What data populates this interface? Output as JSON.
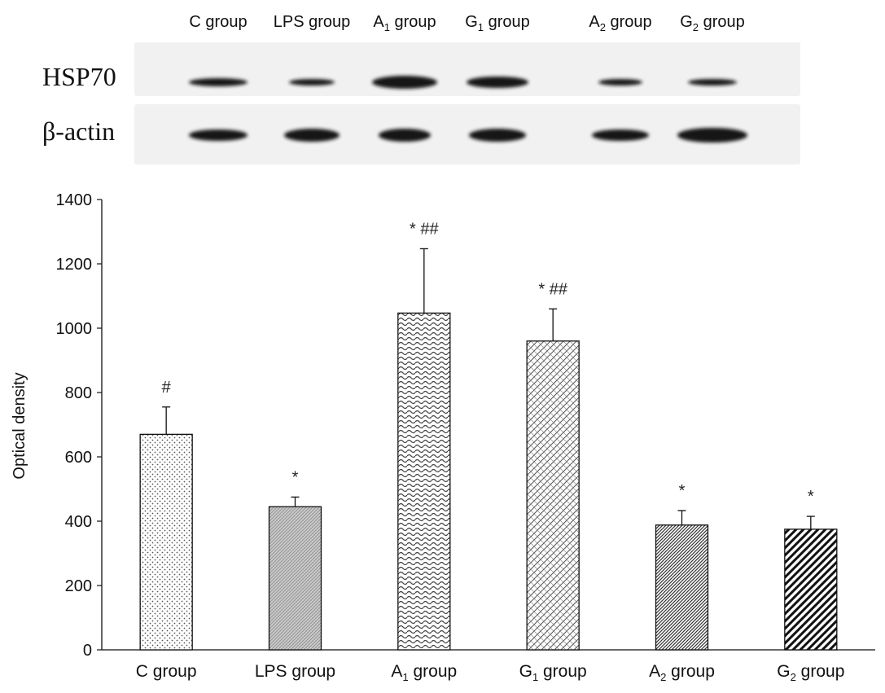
{
  "blot": {
    "lane_labels": [
      {
        "base": "C group",
        "sub": "",
        "rest": ""
      },
      {
        "base": "LPS group",
        "sub": "",
        "rest": ""
      },
      {
        "base": "A",
        "sub": "1",
        "rest": " group"
      },
      {
        "base": "G",
        "sub": "1",
        "rest": " group"
      },
      {
        "base": "A",
        "sub": "2",
        "rest": " group"
      },
      {
        "base": "G",
        "sub": "2",
        "rest": " group"
      }
    ],
    "rows": [
      {
        "label": "HSP70"
      },
      {
        "label": "β-actin"
      }
    ],
    "band_color": "#151515",
    "strip_color": "#f1f1f1"
  },
  "chart_data": {
    "type": "bar",
    "categories": [
      {
        "base": "C group",
        "sub": "",
        "rest": ""
      },
      {
        "base": "LPS group",
        "sub": "",
        "rest": ""
      },
      {
        "base": "A",
        "sub": "1",
        "rest": " group"
      },
      {
        "base": "G",
        "sub": "1",
        "rest": " group"
      },
      {
        "base": "A",
        "sub": "2",
        "rest": " group"
      },
      {
        "base": "G",
        "sub": "2",
        "rest": " group"
      }
    ],
    "values": [
      670,
      445,
      1047,
      960,
      388,
      375
    ],
    "errors": [
      85,
      30,
      200,
      100,
      45,
      40
    ],
    "significance": [
      "#",
      "*",
      "* ##",
      "* ##",
      "*",
      "*"
    ],
    "patterns": [
      "dots",
      "grid",
      "waves",
      "crosshatch",
      "dense-diagonal",
      "bold-diagonal"
    ],
    "xlabel": "",
    "ylabel": "Optical density",
    "ylim": [
      0,
      1400
    ],
    "yticks": [
      0,
      200,
      400,
      600,
      800,
      1000,
      1200,
      1400
    ],
    "grid": false
  }
}
